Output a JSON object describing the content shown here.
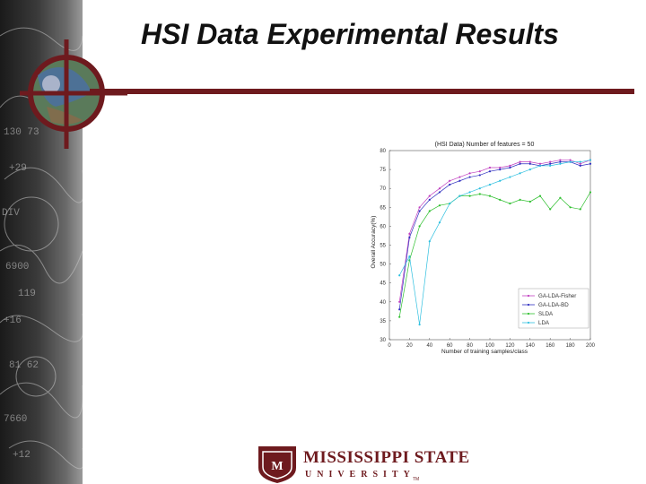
{
  "slide": {
    "title": "HSI Data Experimental Results",
    "accent_color": "#6e1a1e"
  },
  "logo": {
    "name": "MISSISSIPPI STATE",
    "sub": "UNIVERSITY",
    "trademark": "TM"
  },
  "chart_data": {
    "type": "line",
    "title": "(HSI Data) Number of features = 50",
    "xlabel": "Number of training samples/class",
    "ylabel": "Overall Accuracy(%)",
    "xlim": [
      0,
      200
    ],
    "ylim": [
      30,
      80
    ],
    "xticks": [
      0,
      20,
      40,
      60,
      80,
      100,
      120,
      140,
      160,
      180,
      200
    ],
    "yticks": [
      30,
      35,
      40,
      45,
      50,
      55,
      60,
      65,
      70,
      75,
      80
    ],
    "grid": false,
    "legend_position": "bottom-right",
    "x": [
      10,
      20,
      30,
      40,
      50,
      60,
      70,
      80,
      90,
      100,
      110,
      120,
      130,
      140,
      150,
      160,
      170,
      180,
      190,
      200
    ],
    "series": [
      {
        "name": "GA-LDA-Fisher",
        "color": "#c040c0",
        "values": [
          40,
          58,
          65,
          68,
          70,
          72,
          73,
          74,
          74.5,
          75.5,
          75.5,
          76,
          77,
          77,
          76.5,
          77,
          77.5,
          77.5,
          76.5,
          77.5
        ]
      },
      {
        "name": "GA-LDA-BD",
        "color": "#3030c0",
        "values": [
          38,
          57,
          64,
          67,
          69,
          71,
          72,
          73,
          73.5,
          74.5,
          75,
          75.5,
          76.5,
          76.5,
          76,
          76.5,
          77,
          77,
          76,
          76.5
        ]
      },
      {
        "name": "SLDA",
        "color": "#30c030",
        "values": [
          36,
          51,
          60,
          64,
          65.5,
          66,
          68,
          68,
          68.5,
          68,
          67,
          66,
          67,
          66.5,
          68,
          64.5,
          67.5,
          65,
          64.5,
          69
        ]
      },
      {
        "name": "LDA",
        "color": "#30c0e0",
        "values": [
          47,
          52,
          34,
          56,
          61,
          66,
          68,
          69,
          70,
          71,
          72,
          73,
          74,
          75,
          76,
          76,
          76.5,
          77,
          77,
          77.5
        ]
      }
    ]
  }
}
